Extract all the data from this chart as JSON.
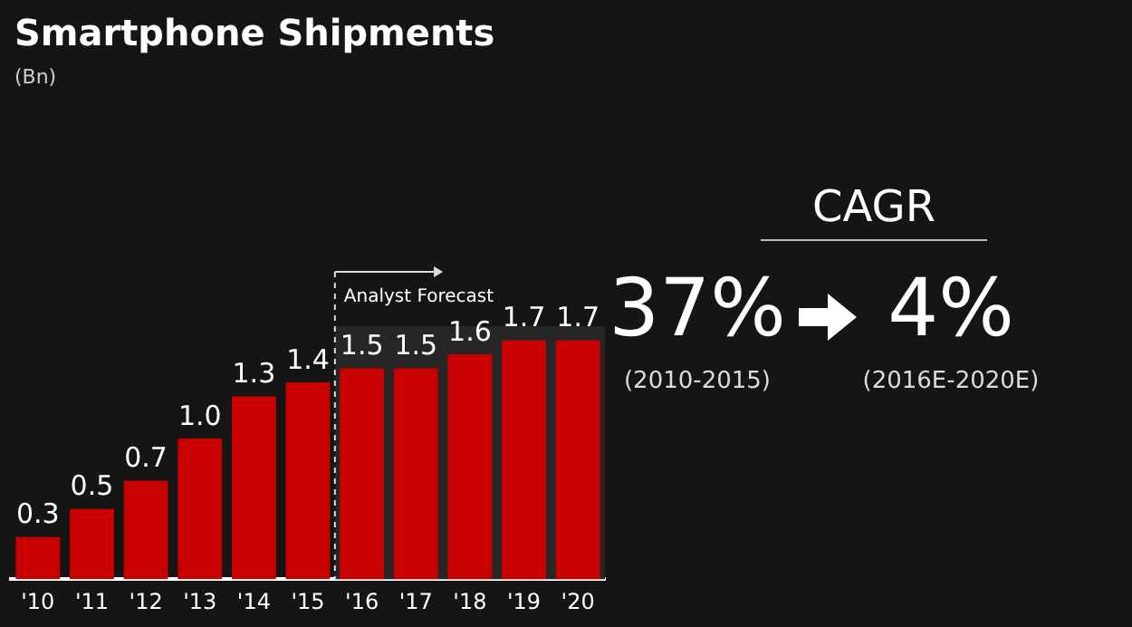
{
  "chart_data": {
    "type": "bar",
    "title": "Smartphone Shipments",
    "categories": [
      "'10",
      "'11",
      "'12",
      "'13",
      "'14",
      "'15",
      "'16",
      "'17",
      "'18",
      "'19",
      "'20"
    ],
    "values": [
      0.3,
      0.5,
      0.7,
      1.0,
      1.3,
      1.4,
      1.5,
      1.5,
      1.6,
      1.7,
      1.7
    ],
    "value_labels": [
      "0.3",
      "0.5",
      "0.7",
      "1.0",
      "1.3",
      "1.4",
      "1.5",
      "1.5",
      "1.6",
      "1.7",
      "1.7"
    ],
    "color": "#c80000",
    "legend": false,
    "bands": [
      {
        "axis": "x",
        "from": "'16",
        "to": "'20",
        "label": "Analyst Forecast",
        "color": "#262626"
      }
    ],
    "annotations": [
      "(Bn)",
      "CAGR",
      "37%",
      "(2010-2015)",
      "4%",
      "(2016E-2020E)"
    ]
  }
}
